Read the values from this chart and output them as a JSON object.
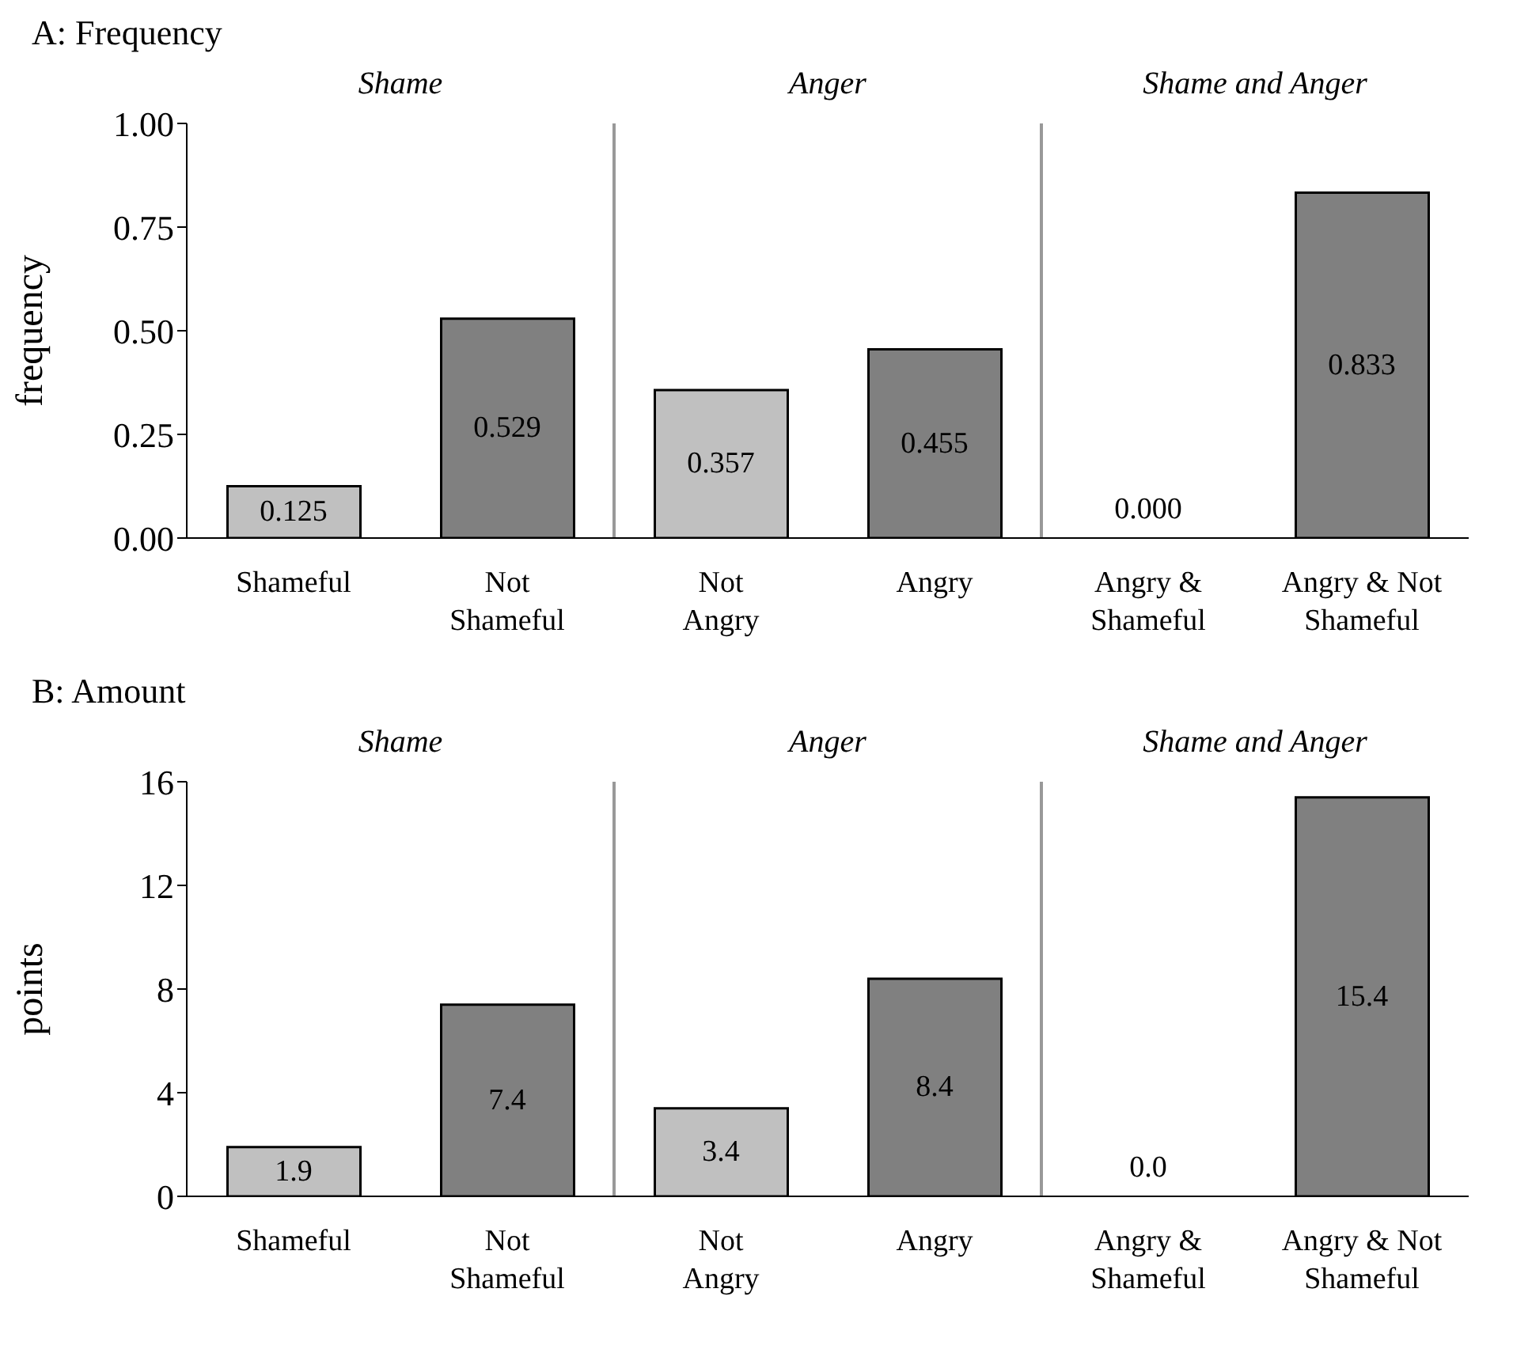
{
  "chart_data": [
    {
      "type": "bar",
      "title": "A: Frequency",
      "ylabel": "frequency",
      "categories": [
        "Shameful",
        "Not Shameful",
        "Not Angry",
        "Angry",
        "Angry & Shameful",
        "Angry & Not Shameful"
      ],
      "values": [
        0.125,
        0.529,
        0.357,
        0.455,
        0.0,
        0.833
      ],
      "colors": [
        "#c0c0c0",
        "#808080",
        "#c0c0c0",
        "#808080",
        "#c0c0c0",
        "#808080"
      ],
      "value_labels": [
        "0.125",
        "0.529",
        "0.357",
        "0.455",
        "0.000",
        "0.833"
      ],
      "ylim": [
        0,
        1
      ],
      "yticks": [
        {
          "value": 0,
          "label": "0.00"
        },
        {
          "value": 0.25,
          "label": "0.25"
        },
        {
          "value": 0.5,
          "label": "0.50"
        },
        {
          "value": 0.75,
          "label": "0.75"
        },
        {
          "value": 1,
          "label": "1.00"
        }
      ],
      "annotations": [
        "Shame",
        "Anger",
        "Shame and Anger"
      ]
    },
    {
      "type": "bar",
      "title": "B: Amount",
      "ylabel": "points",
      "categories": [
        "Shameful",
        "Not Shameful",
        "Not Angry",
        "Angry",
        "Angry & Shameful",
        "Angry & Not Shameful"
      ],
      "values": [
        1.9,
        7.4,
        3.4,
        8.4,
        0.0,
        15.4
      ],
      "colors": [
        "#c0c0c0",
        "#808080",
        "#c0c0c0",
        "#808080",
        "#c0c0c0",
        "#808080"
      ],
      "value_labels": [
        "1.9",
        "7.4",
        "3.4",
        "8.4",
        "0.0",
        "15.4"
      ],
      "ylim": [
        0,
        16
      ],
      "yticks": [
        0,
        4,
        8,
        12,
        16
      ],
      "annotations": [
        "Shame",
        "Anger",
        "Shame and Anger"
      ]
    }
  ]
}
